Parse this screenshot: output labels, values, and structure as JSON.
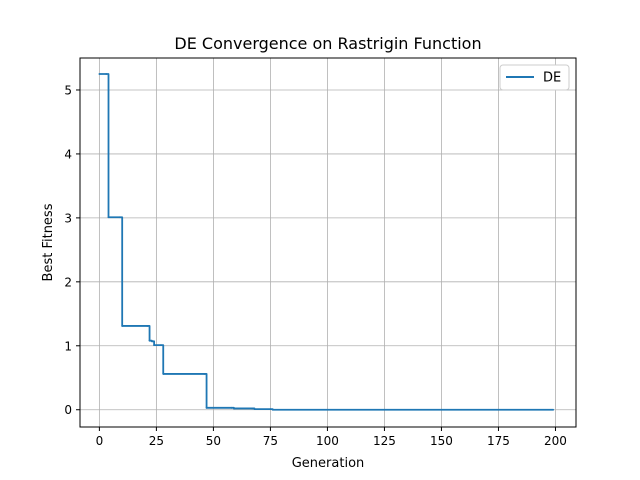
{
  "chart_data": {
    "type": "line",
    "title": "DE Convergence on Rastrigin Function",
    "xlabel": "Generation",
    "ylabel": "Best Fitness",
    "xlim": [
      -8.5,
      209
    ],
    "ylim": [
      -0.27,
      5.5
    ],
    "x_ticks": [
      0,
      25,
      50,
      75,
      100,
      125,
      150,
      175,
      200
    ],
    "y_ticks": [
      0,
      1,
      2,
      3,
      4,
      5
    ],
    "grid": true,
    "legend_position": "top-right",
    "series": [
      {
        "name": "DE",
        "color": "#1f77b4",
        "step": true,
        "points": [
          [
            0,
            5.25
          ],
          [
            3,
            5.25
          ],
          [
            4,
            3.01
          ],
          [
            9,
            3.01
          ],
          [
            10,
            1.31
          ],
          [
            21,
            1.31
          ],
          [
            22,
            1.08
          ],
          [
            23,
            1.07
          ],
          [
            24,
            1.01
          ],
          [
            27,
            1.01
          ],
          [
            28,
            0.56
          ],
          [
            46,
            0.56
          ],
          [
            47,
            0.03
          ],
          [
            58,
            0.03
          ],
          [
            59,
            0.02
          ],
          [
            67,
            0.02
          ],
          [
            68,
            0.01
          ],
          [
            75,
            0.01
          ],
          [
            76,
            0.0
          ],
          [
            199,
            0.0
          ]
        ]
      }
    ]
  }
}
